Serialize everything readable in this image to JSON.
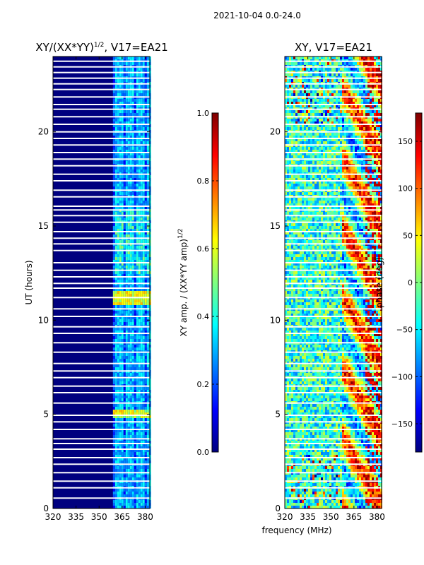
{
  "suptitle": "2021-10-04 0.0-24.0",
  "colors": {
    "background": "#00007f",
    "gap": "#ffffff",
    "jet": [
      "#00007f",
      "#0000ff",
      "#007fff",
      "#00ffff",
      "#7fff7f",
      "#ffff00",
      "#ff7f00",
      "#ff0000",
      "#7f0000"
    ]
  },
  "chart_data": [
    {
      "type": "heatmap",
      "title": "XY/(XX*YY)",
      "title_exponent": "1/2",
      "title_suffix": ", V17=EA21",
      "xlabel": "",
      "ylabel": "UT (hours)",
      "xlim": [
        320,
        383
      ],
      "ylim": [
        0,
        24
      ],
      "xticks": [
        320,
        335,
        350,
        365,
        380
      ],
      "yticks": [
        0,
        5,
        10,
        15,
        20
      ],
      "colorbar": {
        "label": "XY amp. / (XX*YY amp)",
        "label_exponent": "1/2",
        "range": [
          0.0,
          1.0
        ],
        "ticks": [
          0.0,
          0.2,
          0.4,
          0.6,
          0.8,
          1.0
        ],
        "tick_labels": [
          "0.0",
          "0.2",
          "0.4",
          "0.6",
          "0.8",
          "1.0"
        ]
      },
      "active_band_mhz": [
        359,
        383
      ],
      "notes": "Normalized XY amplitude; near zero below ~359 MHz, structured values 0.2-0.6 between 359 and 383 MHz; peaks near UT 11 and UT 5"
    },
    {
      "type": "heatmap",
      "title": "XY, V17=EA21",
      "xlabel": "frequency (MHz)",
      "ylabel": "",
      "xlim": [
        320,
        383
      ],
      "ylim": [
        0,
        24
      ],
      "xticks": [
        320,
        335,
        350,
        365,
        380
      ],
      "yticks": [
        0,
        5,
        10,
        15,
        20
      ],
      "colorbar": {
        "label": "phase (deg)",
        "range": [
          -180,
          180
        ],
        "ticks": [
          -150,
          -100,
          -50,
          0,
          50,
          100,
          150
        ],
        "tick_labels": [
          "−150",
          "−100",
          "−50",
          "0",
          "50",
          "100",
          "150"
        ]
      },
      "notes": "XY phase; noisy cyan/green below 355 MHz, coherent red/yellow structure between 360 and 383 MHz"
    }
  ],
  "data_gaps_ut_hours": [
    0.55,
    1.1,
    1.45,
    1.9,
    2.35,
    2.7,
    3.15,
    3.45,
    3.7,
    4.2,
    4.6,
    4.95,
    5.6,
    6.15,
    6.5,
    6.95,
    7.3,
    7.7,
    8.3,
    8.8,
    9.3,
    9.65,
    10.2,
    10.6,
    11.2,
    11.7,
    11.95,
    12.3,
    12.65,
    13.05,
    13.7,
    14.05,
    14.35,
    14.7,
    15.2,
    15.55,
    15.85,
    16.05,
    16.55,
    16.9,
    17.4,
    17.75,
    18.2,
    18.55,
    18.9,
    19.3,
    19.65,
    20.0,
    20.4,
    20.8,
    21.2,
    21.45,
    21.85,
    22.25,
    22.55,
    22.85,
    23.15,
    23.45,
    23.75
  ]
}
